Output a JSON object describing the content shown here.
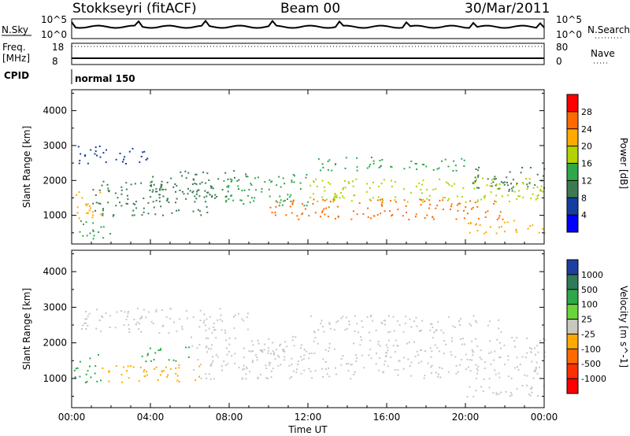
{
  "header": {
    "station": "Stokkseyri (fitACF)",
    "beam": "Beam 00",
    "date": "30/Mar/2011"
  },
  "noise_panel": {
    "left_label": "N.Sky",
    "left_ticks": [
      "10^5",
      "10^0"
    ],
    "right_ticks": [
      "10^5",
      "10^0"
    ],
    "right_label": "N.Search"
  },
  "freq_panel": {
    "left_label": "Freq.",
    "left_units": "[MHz]",
    "left_ticks": [
      "18",
      "8"
    ],
    "right_ticks": [
      "80",
      "0"
    ],
    "right_label": "Nave"
  },
  "cpid": {
    "label": "CPID",
    "value": "normal 150"
  },
  "chart_data": [
    {
      "type": "heatmap",
      "name": "power",
      "ylabel": "Slant Range [km]",
      "yticks": [
        "1000",
        "2000",
        "3000",
        "4000"
      ],
      "ylim": [
        180,
        4600
      ],
      "xlabel": "Time UT",
      "xticks": [
        "00:00",
        "04:00",
        "08:00",
        "12:00",
        "16:00",
        "20:00",
        "00:00"
      ],
      "xlim": [
        0,
        24
      ],
      "colorbar": {
        "label": "Power [dB]",
        "ticks": [
          "28",
          "24",
          "20",
          "16",
          "12",
          "8",
          "4"
        ],
        "colors": [
          "#ff0000",
          "#ff6a00",
          "#ffaa00",
          "#b4d200",
          "#2fa84a",
          "#3d7a50",
          "#143fa0",
          "#0000ff"
        ]
      },
      "regions": [
        {
          "t0": 0.1,
          "t1": 1.5,
          "r0": 900,
          "r1": 1700,
          "level": 24
        },
        {
          "t0": 0.3,
          "t1": 2.0,
          "r0": 300,
          "r1": 900,
          "level": 14
        },
        {
          "t0": 1.0,
          "t1": 7.5,
          "r0": 1000,
          "r1": 2000,
          "level": 10
        },
        {
          "t0": 4.0,
          "t1": 9.0,
          "r0": 1500,
          "r1": 2300,
          "level": 12
        },
        {
          "t0": 0.3,
          "t1": 4.0,
          "r0": 2500,
          "r1": 3000,
          "level": 6
        },
        {
          "t0": 7.5,
          "t1": 12.0,
          "r0": 1300,
          "r1": 2200,
          "level": 16
        },
        {
          "t0": 10.0,
          "t1": 22.0,
          "r0": 900,
          "r1": 1500,
          "level": 28
        },
        {
          "t0": 12.0,
          "t1": 24.0,
          "r0": 1400,
          "r1": 2100,
          "level": 18
        },
        {
          "t0": 12.5,
          "t1": 20.0,
          "r0": 2300,
          "r1": 2700,
          "level": 14
        },
        {
          "t0": 20.0,
          "t1": 24.0,
          "r0": 1700,
          "r1": 2400,
          "level": 10
        },
        {
          "t0": 20.0,
          "t1": 24.0,
          "r0": 500,
          "r1": 900,
          "level": 22
        }
      ]
    },
    {
      "type": "heatmap",
      "name": "velocity",
      "ylabel": "Slant Range [km]",
      "yticks": [
        "1000",
        "2000",
        "3000",
        "4000"
      ],
      "ylim": [
        180,
        4600
      ],
      "xlabel": "Time UT",
      "xticks": [
        "00:00",
        "04:00",
        "08:00",
        "12:00",
        "16:00",
        "20:00",
        "00:00"
      ],
      "xlim": [
        0,
        24
      ],
      "colorbar": {
        "label": "Velocity [m s^-1]",
        "ticks": [
          "1000",
          "500",
          "100",
          "25",
          "-25",
          "-100",
          "-500",
          "-1000"
        ],
        "colors": [
          "#1f3fa0",
          "#2f7a5a",
          "#2fa84a",
          "#6ad43a",
          "#c8c8c0",
          "#ffaa00",
          "#ff6a00",
          "#ff3000",
          "#ff0000"
        ]
      },
      "regions": [
        {
          "t0": 0.1,
          "t1": 1.5,
          "r0": 900,
          "r1": 1700,
          "level": 100
        },
        {
          "t0": 1.5,
          "t1": 6.5,
          "r0": 900,
          "r1": 1400,
          "level": -100
        },
        {
          "t0": 3.5,
          "t1": 6.0,
          "r0": 1500,
          "r1": 1900,
          "level": 100
        },
        {
          "t0": 0.3,
          "t1": 9.0,
          "r0": 2300,
          "r1": 3000,
          "level": 0
        },
        {
          "t0": 6.0,
          "t1": 24.0,
          "r0": 1000,
          "r1": 2200,
          "level": 0
        },
        {
          "t0": 12.0,
          "t1": 22.0,
          "r0": 2300,
          "r1": 2800,
          "level": 0
        },
        {
          "t0": 20.0,
          "t1": 24.0,
          "r0": 500,
          "r1": 900,
          "level": 0
        }
      ]
    }
  ]
}
